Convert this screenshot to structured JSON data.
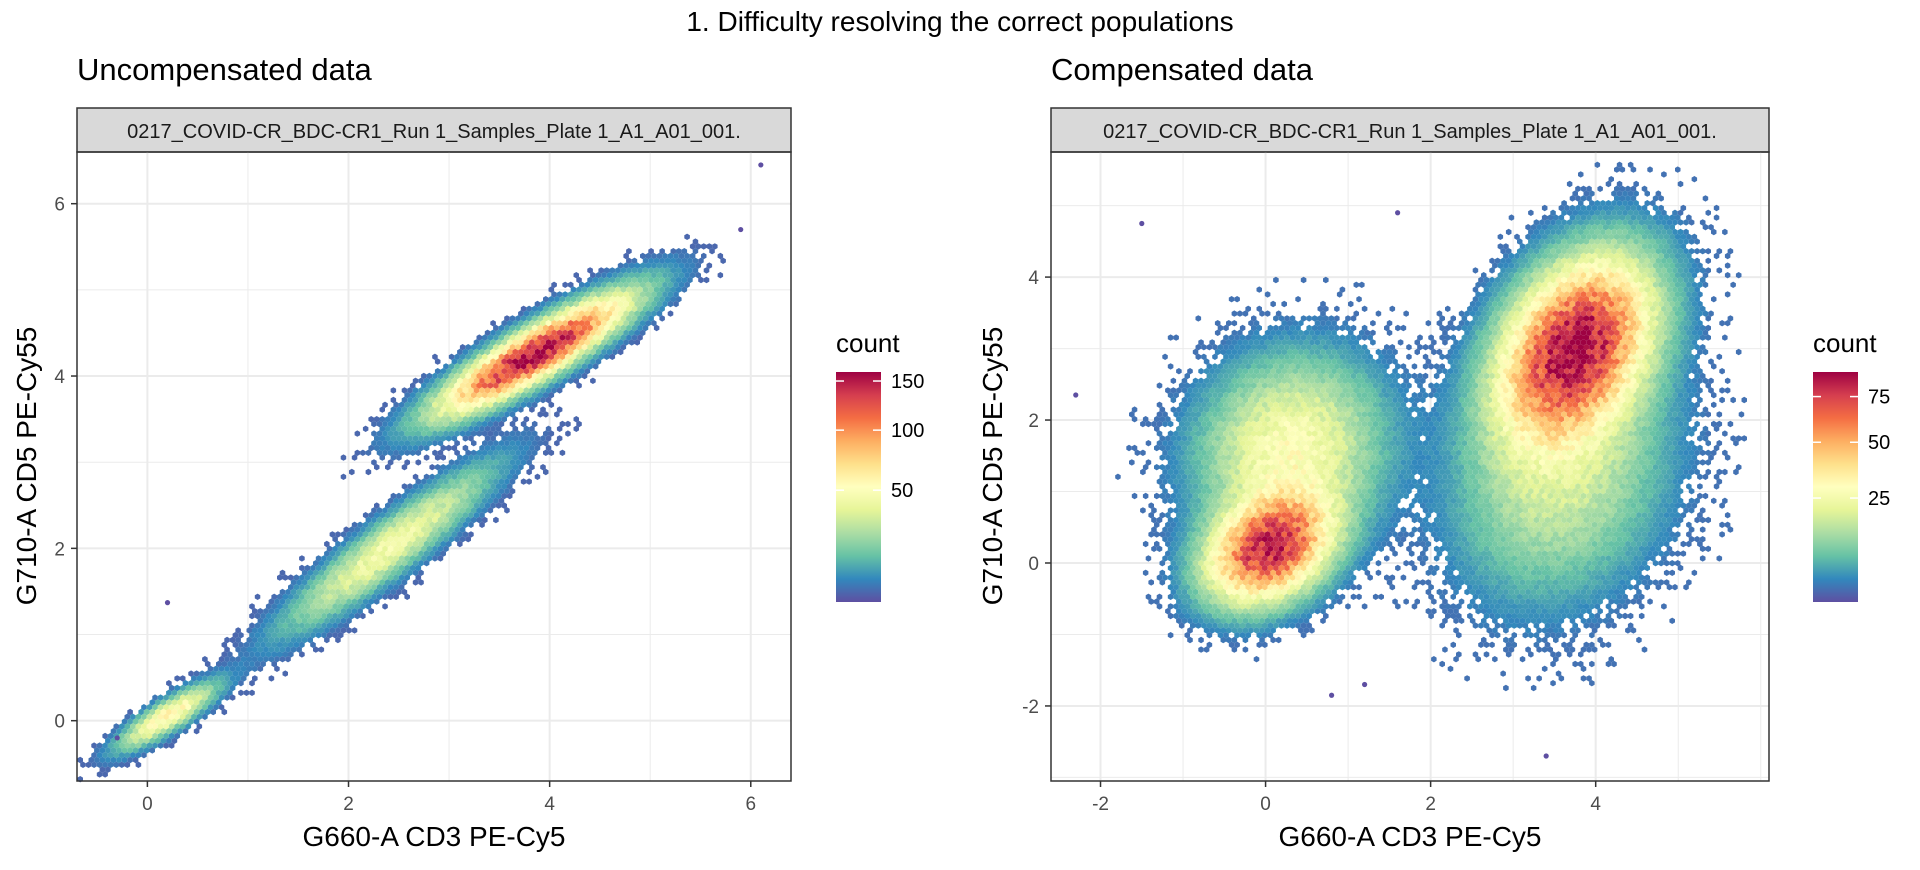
{
  "figure": {
    "title": "1. Difficulty resolving the correct populations"
  },
  "colors": {
    "spectral": [
      "#5E4FA2",
      "#3288BD",
      "#66C2A5",
      "#ABDDA4",
      "#E6F598",
      "#FFFFBF",
      "#FEE08B",
      "#FDAE61",
      "#F46D43",
      "#D53E4F",
      "#9E0142"
    ],
    "panel_strip_bg": "#D9D9D9",
    "grid_major": "#EBEBEB",
    "border": "#333333"
  },
  "chart_data": [
    {
      "type": "hexbin",
      "title": "Uncompensated data",
      "facet": "0217_COVID-CR_BDC-CR1_Run 1_Samples_Plate 1_A1_A01_001.",
      "xlabel": "G660-A CD3 PE-Cy5",
      "ylabel": "G710-A CD5 PE-Cy55",
      "xlim": [
        -0.7,
        6.4
      ],
      "ylim": [
        -0.7,
        6.6
      ],
      "x_ticks": [
        0,
        2,
        4,
        6
      ],
      "y_ticks": [
        0,
        2,
        4,
        6
      ],
      "grid": true,
      "legend": {
        "title": "count",
        "position": "right",
        "ticks": [
          150,
          100,
          50
        ],
        "max": 160
      },
      "populations": [
        {
          "cx": 0.2,
          "cy": 0.05,
          "sx": 0.28,
          "sy": 0.22,
          "rho": 0.85,
          "peak": 60
        },
        {
          "cx": 2.4,
          "cy": 2.0,
          "sx": 0.6,
          "sy": 0.55,
          "rho": 0.92,
          "peak": 45
        },
        {
          "cx": 3.85,
          "cy": 4.25,
          "sx": 0.55,
          "sy": 0.4,
          "rho": 0.88,
          "peak": 160
        }
      ],
      "outliers": [
        [
          6.1,
          6.45
        ],
        [
          0.2,
          1.37
        ],
        [
          -0.3,
          -0.2
        ],
        [
          5.9,
          5.7
        ]
      ]
    },
    {
      "type": "hexbin",
      "title": "Compensated data",
      "facet": "0217_COVID-CR_BDC-CR1_Run 1_Samples_Plate 1_A1_A01_001.",
      "xlabel": "G660-A CD3 PE-Cy5",
      "ylabel": "G710-A CD5 PE-Cy55",
      "xlim": [
        -2.6,
        6.1
      ],
      "ylim": [
        -3.05,
        5.75
      ],
      "x_ticks": [
        -2,
        0,
        2,
        4
      ],
      "y_ticks": [
        -2,
        0,
        2,
        4
      ],
      "grid": true,
      "legend": {
        "title": "count",
        "position": "right",
        "ticks": [
          75,
          50,
          25
        ],
        "max": 90
      },
      "populations": [
        {
          "cx": 0.05,
          "cy": 0.2,
          "sx": 0.45,
          "sy": 0.45,
          "rho": 0.3,
          "peak": 80
        },
        {
          "cx": 0.3,
          "cy": 1.6,
          "sx": 0.65,
          "sy": 0.75,
          "rho": 0.1,
          "peak": 28
        },
        {
          "cx": 3.75,
          "cy": 3.0,
          "sx": 0.55,
          "sy": 0.75,
          "rho": 0.35,
          "peak": 90
        },
        {
          "cx": 3.6,
          "cy": 1.2,
          "sx": 0.75,
          "sy": 1.0,
          "rho": 0.2,
          "peak": 18
        }
      ],
      "outliers": [
        [
          3.4,
          -2.7
        ],
        [
          -1.5,
          4.75
        ],
        [
          1.6,
          4.9
        ],
        [
          -2.3,
          2.35
        ],
        [
          1.2,
          -1.7
        ],
        [
          0.8,
          -1.85
        ]
      ]
    }
  ]
}
